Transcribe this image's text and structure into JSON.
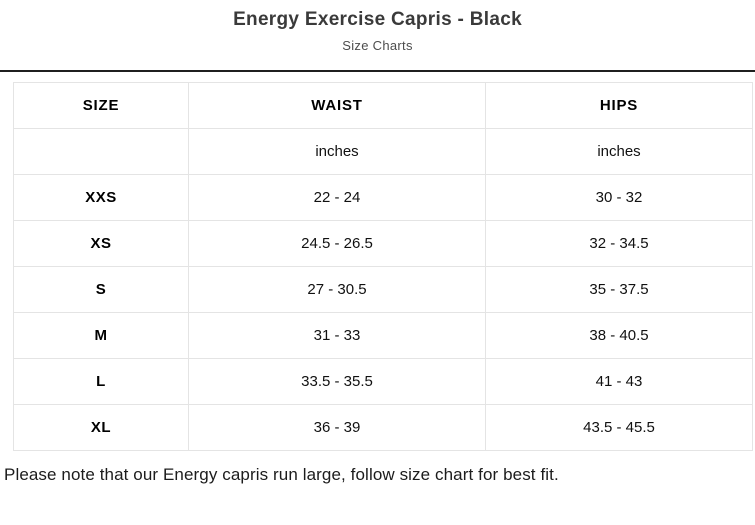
{
  "page": {
    "title": "Energy Exercise Capris - Black",
    "subtitle": "Size Charts",
    "note": "Please note that our Energy capris run large, follow size chart for best fit."
  },
  "size_chart": {
    "type": "table",
    "columns": [
      "SIZE",
      "WAIST",
      "HIPS"
    ],
    "units": [
      "",
      "inches",
      "inches"
    ],
    "rows": [
      [
        "XXS",
        "22 - 24",
        "30 - 32"
      ],
      [
        "XS",
        "24.5 - 26.5",
        "32 - 34.5"
      ],
      [
        "S",
        "27 - 30.5",
        "35 - 37.5"
      ],
      [
        "M",
        "31 - 33",
        "38 - 40.5"
      ],
      [
        "L",
        "33.5 - 35.5",
        "41 - 43"
      ],
      [
        "XL",
        "36 - 39",
        "43.5 - 45.5"
      ]
    ]
  }
}
